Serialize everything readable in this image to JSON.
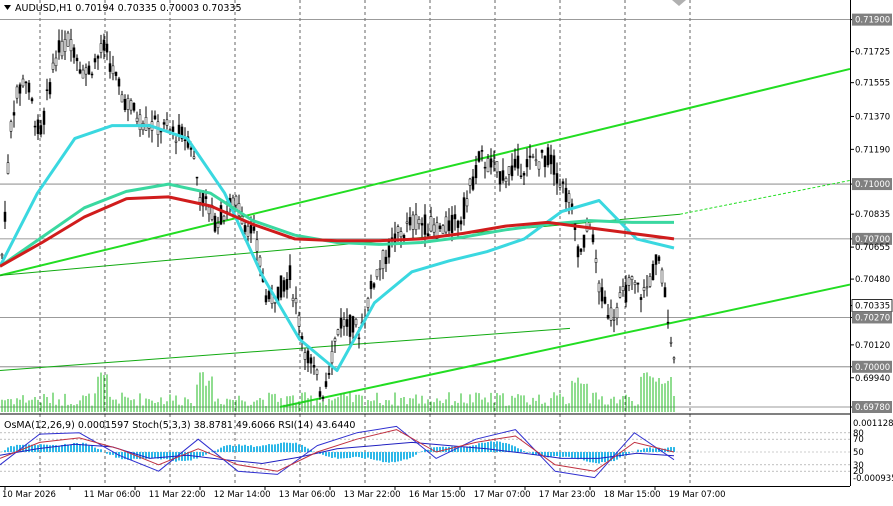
{
  "chart_data": [
    {
      "type": "candlestick",
      "symbol": "AUDUSD,H1",
      "ohlc_header": [
        "0.70194",
        "0.70335",
        "0.70003",
        "0.70335"
      ],
      "price_labels": [
        "0.71900",
        "0.71725",
        "0.71555",
        "0.71370",
        "0.71190",
        "0.71000",
        "0.70835",
        "0.70700",
        "0.70655",
        "0.70480",
        "0.70335",
        "0.70270",
        "0.70120",
        "0.70000",
        "0.69940",
        "0.69780"
      ],
      "time_labels": [
        "10 Mar 2026",
        "11 Mar 06:00",
        "11 Mar 22:00",
        "12 Mar 14:00",
        "13 Mar 06:00",
        "13 Mar 22:00",
        "16 Mar 15:00",
        "17 Mar 07:00",
        "17 Mar 23:00",
        "18 Mar 15:00",
        "19 Mar 07:00"
      ],
      "ylim": [
        0.6978,
        0.7198
      ],
      "series": [
        {
          "key": "ma_fast",
          "color": "#3ad8e0",
          "values": [
            0.7055,
            0.7095,
            0.7125,
            0.7132,
            0.7132,
            0.7125,
            0.7095,
            0.705,
            0.7015,
            0.6998,
            0.7035,
            0.7052,
            0.7058,
            0.7063,
            0.707,
            0.7085,
            0.7091,
            0.707,
            0.7065
          ]
        },
        {
          "key": "ma_mid",
          "color": "#3ad8a0",
          "values": [
            0.7055,
            0.7071,
            0.7087,
            0.7096,
            0.71,
            0.7095,
            0.708,
            0.7072,
            0.7068,
            0.7067,
            0.7068,
            0.7071,
            0.7075,
            0.7078,
            0.708,
            0.7079,
            0.7079
          ]
        },
        {
          "key": "ma_slow",
          "color": "#d01c1c",
          "values": [
            0.7055,
            0.7068,
            0.7082,
            0.7092,
            0.7093,
            0.7088,
            0.7078,
            0.707,
            0.7069,
            0.7069,
            0.707,
            0.7073,
            0.7077,
            0.7079,
            0.7076,
            0.7073,
            0.707
          ]
        }
      ],
      "current_price": "0.70335"
    },
    {
      "type": "bar",
      "title": "OsMA(12,26,9) 0.0001597  Stoch(5,3,3) 38.8781 49.6066  RSI(14) 43.6440",
      "right_labels": [
        "0.001128",
        "80",
        "70",
        "50",
        "30",
        "20",
        "-0.000935"
      ],
      "lines": [
        {
          "key": "rsi",
          "color": "#2020c0",
          "values": [
            45,
            55,
            62,
            58,
            40,
            45,
            38,
            32,
            42,
            55,
            60,
            65,
            60,
            55,
            48,
            40,
            40,
            48,
            44
          ]
        },
        {
          "key": "stoch_k",
          "color": "#3030d0",
          "values": [
            30,
            78,
            80,
            45,
            20,
            70,
            20,
            15,
            60,
            80,
            90,
            40,
            70,
            85,
            20,
            10,
            80,
            38
          ]
        },
        {
          "key": "stoch_d",
          "color": "#c03040",
          "values": [
            40,
            65,
            72,
            55,
            30,
            55,
            30,
            20,
            50,
            70,
            85,
            50,
            65,
            75,
            30,
            20,
            65,
            50
          ]
        }
      ]
    }
  ]
}
